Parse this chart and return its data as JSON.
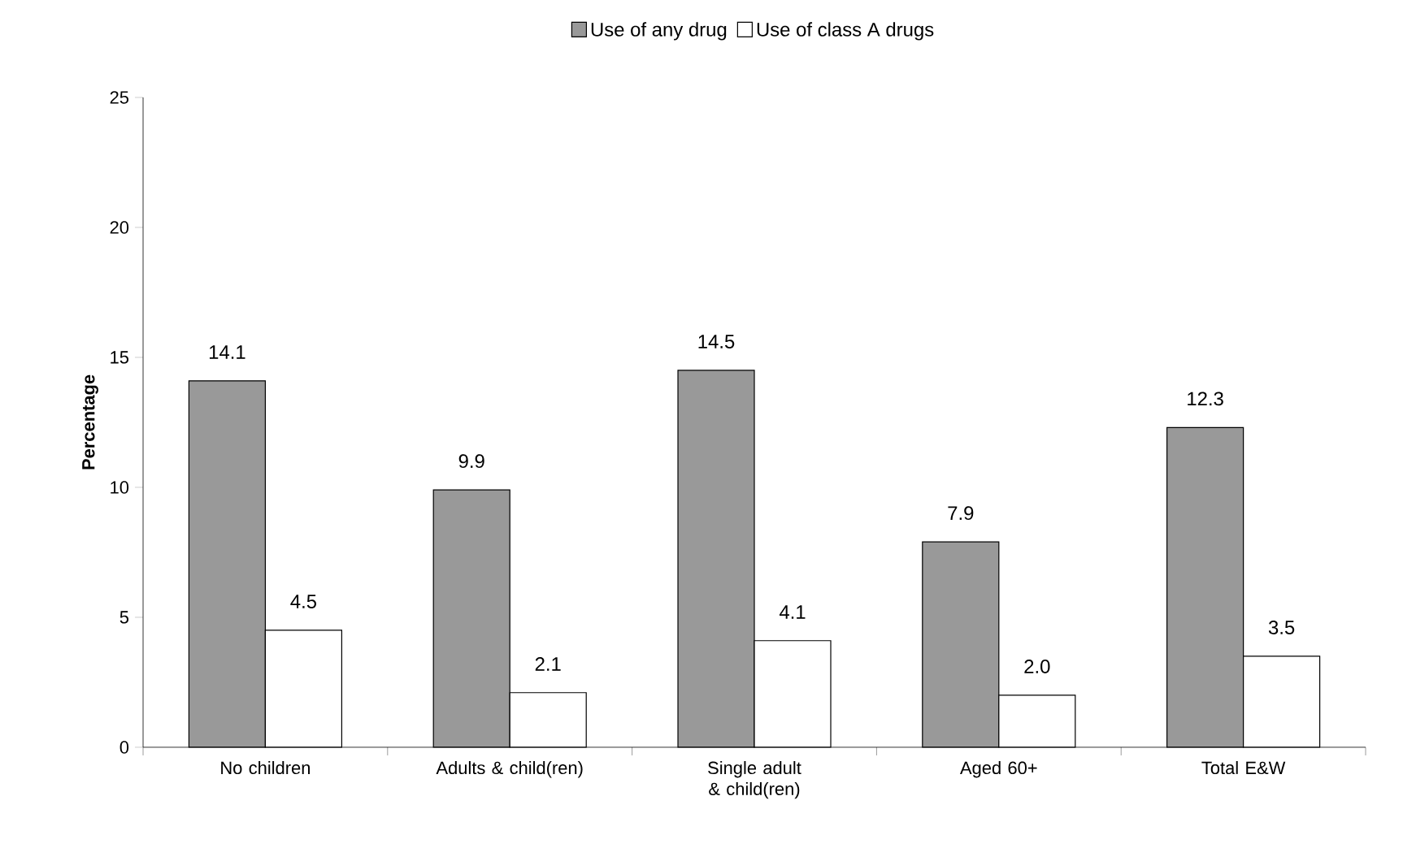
{
  "chart_data": {
    "type": "bar",
    "ylabel": "Percentage",
    "categories": [
      "No children",
      "Adults & child(ren)",
      "Single adult & child(ren)",
      "Aged 60+",
      "Total E&W"
    ],
    "series": [
      {
        "name": "Use of any drug",
        "color": "#999999",
        "values": [
          14.1,
          9.9,
          14.5,
          7.9,
          12.3
        ],
        "value_labels": [
          "14.1",
          "9.9",
          "14.5",
          "7.9",
          "12.3"
        ]
      },
      {
        "name": "Use of class A drugs",
        "color": "#ffffff",
        "values": [
          4.5,
          2.1,
          4.1,
          2.0,
          3.5
        ],
        "value_labels": [
          "4.5",
          "2.1",
          "4.1",
          "2.0",
          "3.5"
        ]
      }
    ],
    "ylim": [
      0,
      25
    ],
    "yticks": [
      0,
      5,
      10,
      15,
      20,
      25
    ],
    "legend": "top",
    "grid": false
  }
}
